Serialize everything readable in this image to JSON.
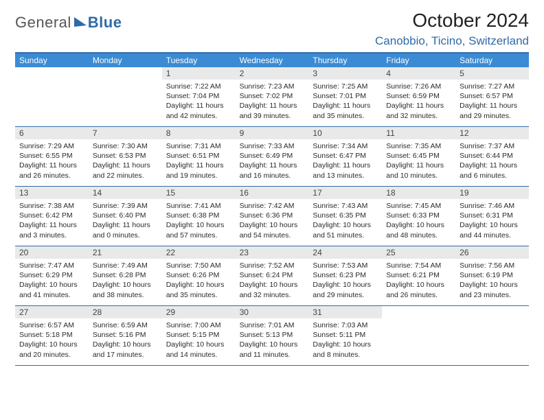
{
  "logo": {
    "part1": "General",
    "part2": "Blue"
  },
  "title": "October 2024",
  "location": "Canobbio, Ticino, Switzerland",
  "colors": {
    "accent": "#2f6aa8",
    "header_bar": "#3b8bd4",
    "daynum_bg": "#e9e9e9",
    "text": "#2a2a2a",
    "background": "#ffffff"
  },
  "days_of_week": [
    "Sunday",
    "Monday",
    "Tuesday",
    "Wednesday",
    "Thursday",
    "Friday",
    "Saturday"
  ],
  "weeks": [
    [
      null,
      null,
      {
        "n": "1",
        "sunrise": "7:22 AM",
        "sunset": "7:04 PM",
        "dl": "11 hours and 42 minutes."
      },
      {
        "n": "2",
        "sunrise": "7:23 AM",
        "sunset": "7:02 PM",
        "dl": "11 hours and 39 minutes."
      },
      {
        "n": "3",
        "sunrise": "7:25 AM",
        "sunset": "7:01 PM",
        "dl": "11 hours and 35 minutes."
      },
      {
        "n": "4",
        "sunrise": "7:26 AM",
        "sunset": "6:59 PM",
        "dl": "11 hours and 32 minutes."
      },
      {
        "n": "5",
        "sunrise": "7:27 AM",
        "sunset": "6:57 PM",
        "dl": "11 hours and 29 minutes."
      }
    ],
    [
      {
        "n": "6",
        "sunrise": "7:29 AM",
        "sunset": "6:55 PM",
        "dl": "11 hours and 26 minutes."
      },
      {
        "n": "7",
        "sunrise": "7:30 AM",
        "sunset": "6:53 PM",
        "dl": "11 hours and 22 minutes."
      },
      {
        "n": "8",
        "sunrise": "7:31 AM",
        "sunset": "6:51 PM",
        "dl": "11 hours and 19 minutes."
      },
      {
        "n": "9",
        "sunrise": "7:33 AM",
        "sunset": "6:49 PM",
        "dl": "11 hours and 16 minutes."
      },
      {
        "n": "10",
        "sunrise": "7:34 AM",
        "sunset": "6:47 PM",
        "dl": "11 hours and 13 minutes."
      },
      {
        "n": "11",
        "sunrise": "7:35 AM",
        "sunset": "6:45 PM",
        "dl": "11 hours and 10 minutes."
      },
      {
        "n": "12",
        "sunrise": "7:37 AM",
        "sunset": "6:44 PM",
        "dl": "11 hours and 6 minutes."
      }
    ],
    [
      {
        "n": "13",
        "sunrise": "7:38 AM",
        "sunset": "6:42 PM",
        "dl": "11 hours and 3 minutes."
      },
      {
        "n": "14",
        "sunrise": "7:39 AM",
        "sunset": "6:40 PM",
        "dl": "11 hours and 0 minutes."
      },
      {
        "n": "15",
        "sunrise": "7:41 AM",
        "sunset": "6:38 PM",
        "dl": "10 hours and 57 minutes."
      },
      {
        "n": "16",
        "sunrise": "7:42 AM",
        "sunset": "6:36 PM",
        "dl": "10 hours and 54 minutes."
      },
      {
        "n": "17",
        "sunrise": "7:43 AM",
        "sunset": "6:35 PM",
        "dl": "10 hours and 51 minutes."
      },
      {
        "n": "18",
        "sunrise": "7:45 AM",
        "sunset": "6:33 PM",
        "dl": "10 hours and 48 minutes."
      },
      {
        "n": "19",
        "sunrise": "7:46 AM",
        "sunset": "6:31 PM",
        "dl": "10 hours and 44 minutes."
      }
    ],
    [
      {
        "n": "20",
        "sunrise": "7:47 AM",
        "sunset": "6:29 PM",
        "dl": "10 hours and 41 minutes."
      },
      {
        "n": "21",
        "sunrise": "7:49 AM",
        "sunset": "6:28 PM",
        "dl": "10 hours and 38 minutes."
      },
      {
        "n": "22",
        "sunrise": "7:50 AM",
        "sunset": "6:26 PM",
        "dl": "10 hours and 35 minutes."
      },
      {
        "n": "23",
        "sunrise": "7:52 AM",
        "sunset": "6:24 PM",
        "dl": "10 hours and 32 minutes."
      },
      {
        "n": "24",
        "sunrise": "7:53 AM",
        "sunset": "6:23 PM",
        "dl": "10 hours and 29 minutes."
      },
      {
        "n": "25",
        "sunrise": "7:54 AM",
        "sunset": "6:21 PM",
        "dl": "10 hours and 26 minutes."
      },
      {
        "n": "26",
        "sunrise": "7:56 AM",
        "sunset": "6:19 PM",
        "dl": "10 hours and 23 minutes."
      }
    ],
    [
      {
        "n": "27",
        "sunrise": "6:57 AM",
        "sunset": "5:18 PM",
        "dl": "10 hours and 20 minutes."
      },
      {
        "n": "28",
        "sunrise": "6:59 AM",
        "sunset": "5:16 PM",
        "dl": "10 hours and 17 minutes."
      },
      {
        "n": "29",
        "sunrise": "7:00 AM",
        "sunset": "5:15 PM",
        "dl": "10 hours and 14 minutes."
      },
      {
        "n": "30",
        "sunrise": "7:01 AM",
        "sunset": "5:13 PM",
        "dl": "10 hours and 11 minutes."
      },
      {
        "n": "31",
        "sunrise": "7:03 AM",
        "sunset": "5:11 PM",
        "dl": "10 hours and 8 minutes."
      },
      null,
      null
    ]
  ],
  "labels": {
    "sunrise": "Sunrise: ",
    "sunset": "Sunset: ",
    "daylight": "Daylight: "
  }
}
